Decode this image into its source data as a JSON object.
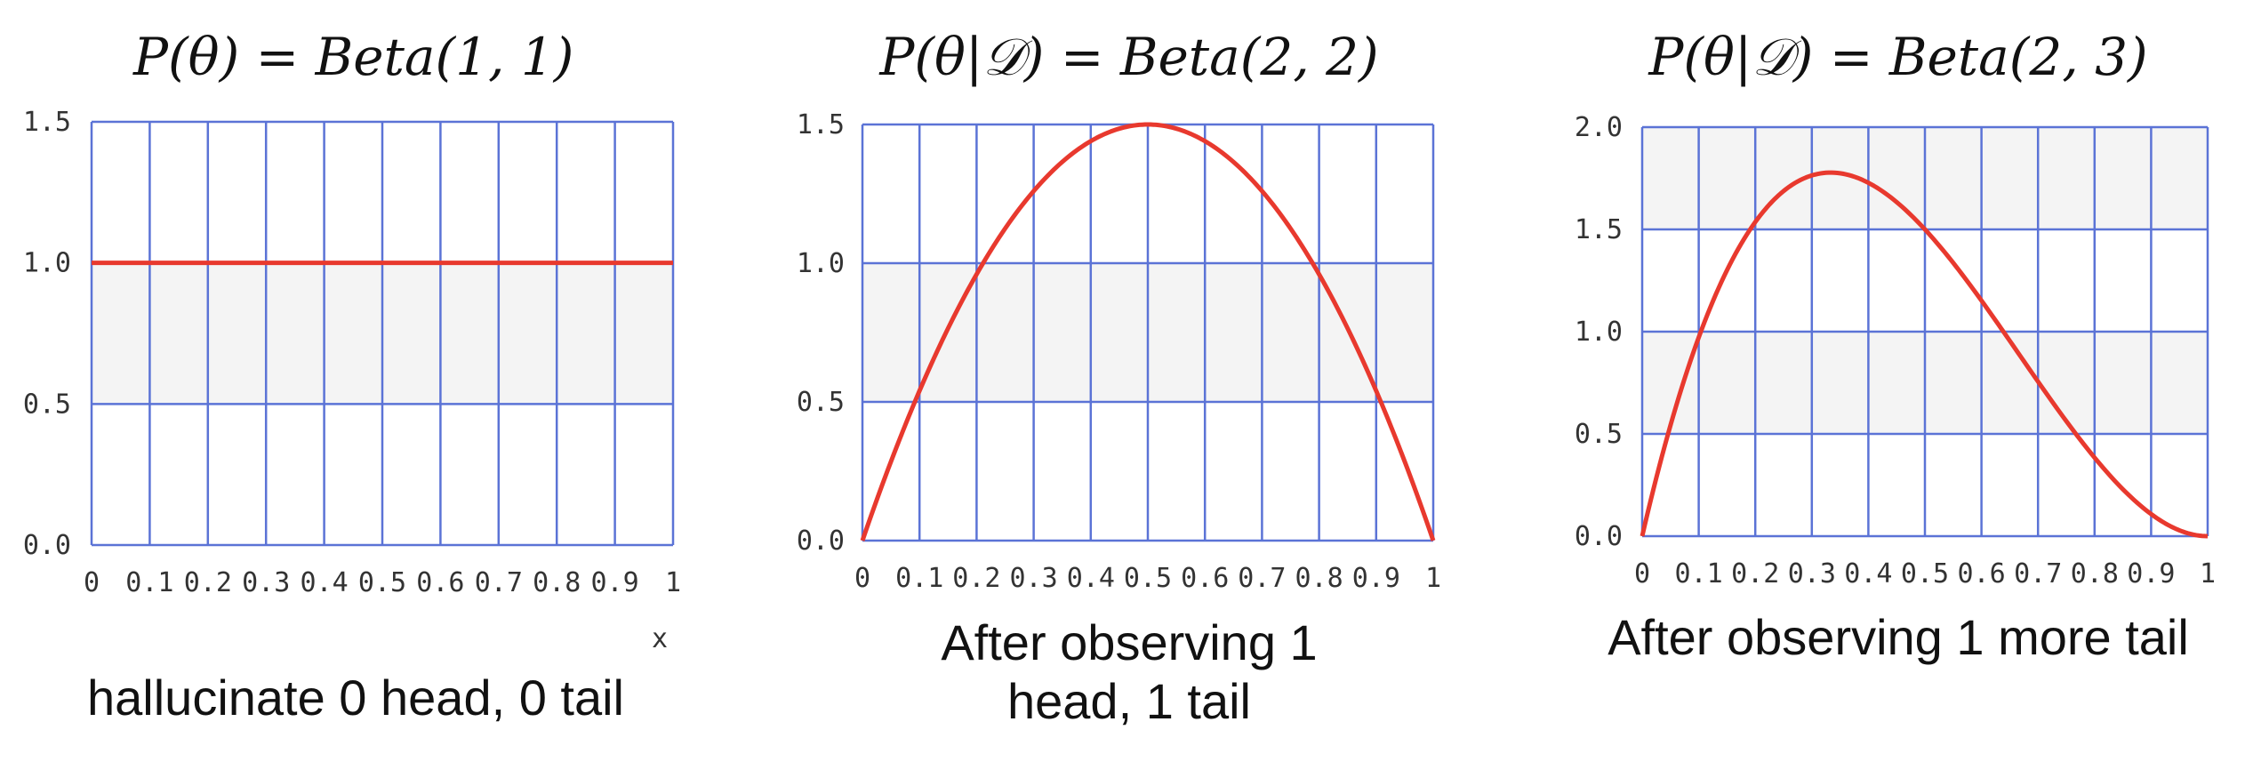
{
  "chart_data": [
    {
      "type": "line",
      "title": "P(θ) = Beta(1, 1)",
      "xlabel": "x",
      "ylabel": "",
      "xlim": [
        0,
        1
      ],
      "ylim": [
        0,
        1.5
      ],
      "x_ticks": [
        "0",
        "0.1",
        "0.2",
        "0.3",
        "0.4",
        "0.5",
        "0.6",
        "0.7",
        "0.8",
        "0.9",
        "1"
      ],
      "y_ticks": [
        "0.0",
        "0.5",
        "1.0",
        "1.5"
      ],
      "grid": true,
      "series": [
        {
          "color": "#e8392e",
          "distribution": "Beta",
          "a": 1,
          "b": 1,
          "x": [
            0,
            0.1,
            0.2,
            0.3,
            0.4,
            0.5,
            0.6,
            0.7,
            0.8,
            0.9,
            1
          ],
          "y": [
            1,
            1,
            1,
            1,
            1,
            1,
            1,
            1,
            1,
            1,
            1
          ]
        }
      ],
      "caption": "hallucinate 0 head, 0 tail"
    },
    {
      "type": "line",
      "title": "P(θ|𝒟) = Beta(2, 2)",
      "xlabel": "",
      "ylabel": "",
      "xlim": [
        0,
        1
      ],
      "ylim": [
        0,
        1.5
      ],
      "x_ticks": [
        "0",
        "0.1",
        "0.2",
        "0.3",
        "0.4",
        "0.5",
        "0.6",
        "0.7",
        "0.8",
        "0.9",
        "1"
      ],
      "y_ticks": [
        "0.0",
        "0.5",
        "1.0",
        "1.5"
      ],
      "grid": true,
      "series": [
        {
          "color": "#e8392e",
          "distribution": "Beta",
          "a": 2,
          "b": 2,
          "x": [
            0,
            0.1,
            0.2,
            0.3,
            0.4,
            0.5,
            0.6,
            0.7,
            0.8,
            0.9,
            1
          ],
          "y": [
            0,
            0.54,
            0.96,
            1.26,
            1.44,
            1.5,
            1.44,
            1.26,
            0.96,
            0.54,
            0
          ]
        }
      ],
      "caption": "After observing 1 head, 1 tail"
    },
    {
      "type": "line",
      "title": "P(θ|𝒟) = Beta(2, 3)",
      "xlabel": "",
      "ylabel": "",
      "xlim": [
        0,
        1
      ],
      "ylim": [
        0,
        2.0
      ],
      "x_ticks": [
        "0",
        "0.1",
        "0.2",
        "0.3",
        "0.4",
        "0.5",
        "0.6",
        "0.7",
        "0.8",
        "0.9",
        "1"
      ],
      "y_ticks": [
        "0.0",
        "0.5",
        "1.0",
        "1.5",
        "2.0"
      ],
      "grid": true,
      "series": [
        {
          "color": "#e8392e",
          "distribution": "Beta",
          "a": 2,
          "b": 3,
          "x": [
            0,
            0.1,
            0.2,
            0.3,
            0.4,
            0.5,
            0.6,
            0.7,
            0.8,
            0.9,
            1
          ],
          "y": [
            0,
            0.972,
            1.536,
            1.764,
            1.728,
            1.5,
            1.152,
            0.756,
            0.384,
            0.108,
            0
          ]
        }
      ],
      "caption": "After observing 1 more tail"
    }
  ]
}
